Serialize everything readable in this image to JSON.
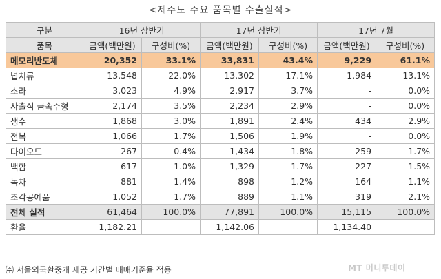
{
  "title": "<제주도 주요 품목별 수출실적>",
  "header": {
    "category": "구분",
    "period1": "16년 상반기",
    "period2": "17년 상반기",
    "period3": "17년 7월"
  },
  "subheader": {
    "item": "품목",
    "amount": "금액(백만원)",
    "share": "구성비(%)"
  },
  "rows": [
    {
      "name": "메모리반도체",
      "a1": "20,352",
      "s1": "33.1%",
      "a2": "33,831",
      "s2": "43.4%",
      "a3": "9,229",
      "s3": "61.1%"
    },
    {
      "name": "넙치류",
      "a1": "13,548",
      "s1": "22.0%",
      "a2": "13,302",
      "s2": "17.1%",
      "a3": "1,984",
      "s3": "13.1%"
    },
    {
      "name": "소라",
      "a1": "3,023",
      "s1": "4.9%",
      "a2": "2,917",
      "s2": "3.7%",
      "a3": "-",
      "s3": "0.0%"
    },
    {
      "name": "사출식 금속주형",
      "a1": "2,174",
      "s1": "3.5%",
      "a2": "2,234",
      "s2": "2.9%",
      "a3": "-",
      "s3": "0.0%"
    },
    {
      "name": "생수",
      "a1": "1,868",
      "s1": "3.0%",
      "a2": "1,891",
      "s2": "2.4%",
      "a3": "434",
      "s3": "2.9%"
    },
    {
      "name": "전복",
      "a1": "1,066",
      "s1": "1.7%",
      "a2": "1,506",
      "s2": "1.9%",
      "a3": "-",
      "s3": "0.0%"
    },
    {
      "name": "다이오드",
      "a1": "267",
      "s1": "0.4%",
      "a2": "1,434",
      "s2": "1.8%",
      "a3": "259",
      "s3": "1.7%"
    },
    {
      "name": "백합",
      "a1": "617",
      "s1": "1.0%",
      "a2": "1,329",
      "s2": "1.7%",
      "a3": "227",
      "s3": "1.5%"
    },
    {
      "name": "녹차",
      "a1": "881",
      "s1": "1.4%",
      "a2": "898",
      "s2": "1.2%",
      "a3": "164",
      "s3": "1.1%"
    },
    {
      "name": "조각공예품",
      "a1": "1,052",
      "s1": "1.7%",
      "a2": "889",
      "s2": "1.1%",
      "a3": "319",
      "s3": "2.1%"
    }
  ],
  "total": {
    "name": "전체 실적",
    "a1": "61,464",
    "s1": "100.0%",
    "a2": "77,891",
    "s2": "100.0%",
    "a3": "15,115",
    "s3": "100.0%"
  },
  "exchange": {
    "name": "환율",
    "v1": "1,182.21",
    "v2": "1,142.06",
    "v3": "1,134.40"
  },
  "footnote": "㈜ 서울외국환중개 제공 기간별 매매기준율 적용",
  "watermark": "MT 머니투데이"
}
